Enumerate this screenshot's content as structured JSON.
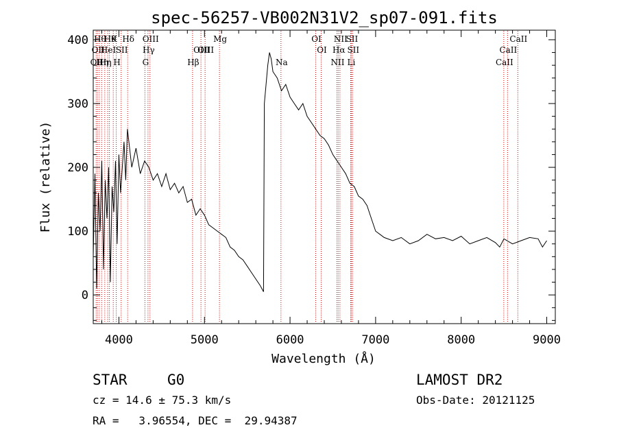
{
  "chart_data": {
    "type": "line",
    "title": "spec-56257-VB002N31V2_sp07-091.fits",
    "xlabel": "Wavelength (Å)",
    "ylabel": "Flux (relative)",
    "xlim": [
      3700,
      9100
    ],
    "ylim": [
      -45,
      415
    ],
    "x_ticks": [
      4000,
      5000,
      6000,
      7000,
      8000,
      9000
    ],
    "y_ticks": [
      0,
      100,
      200,
      300,
      400
    ],
    "line_color": "#000000",
    "marker_color": "#cc0000",
    "grid": false,
    "series": [
      {
        "x": [
          3700,
          3720,
          3740,
          3760,
          3780,
          3800,
          3820,
          3840,
          3860,
          3880,
          3900,
          3920,
          3940,
          3960,
          3980,
          4000,
          4020,
          4040,
          4060,
          4080,
          4100,
          4150,
          4200,
          4250,
          4300,
          4350,
          4400,
          4450,
          4500,
          4550,
          4600,
          4650,
          4700,
          4750,
          4800,
          4850,
          4900,
          4950,
          5000,
          5050,
          5100,
          5150,
          5200,
          5250,
          5300,
          5350,
          5400,
          5450,
          5500,
          5550,
          5600,
          5650,
          5690,
          5700,
          5720,
          5740,
          5760,
          5780,
          5800,
          5850,
          5900,
          5950,
          6000,
          6050,
          6100,
          6150,
          6200,
          6250,
          6300,
          6350,
          6400,
          6450,
          6500,
          6550,
          6600,
          6650,
          6700,
          6750,
          6800,
          6850,
          6900,
          6950,
          7000,
          7050,
          7100,
          7200,
          7300,
          7400,
          7500,
          7600,
          7700,
          7800,
          7900,
          8000,
          8100,
          8200,
          8300,
          8400,
          8450,
          8500,
          8600,
          8700,
          8800,
          8900,
          8950,
          9000
        ],
        "y": [
          60,
          190,
          10,
          160,
          100,
          210,
          40,
          180,
          120,
          200,
          20,
          170,
          130,
          210,
          80,
          220,
          160,
          200,
          240,
          180,
          260,
          200,
          230,
          190,
          210,
          200,
          180,
          190,
          170,
          190,
          165,
          175,
          160,
          170,
          145,
          150,
          125,
          135,
          125,
          110,
          105,
          100,
          95,
          90,
          75,
          70,
          60,
          55,
          45,
          35,
          25,
          15,
          5,
          300,
          330,
          360,
          380,
          370,
          350,
          340,
          320,
          330,
          310,
          300,
          290,
          300,
          280,
          270,
          260,
          250,
          245,
          235,
          220,
          210,
          200,
          190,
          175,
          170,
          155,
          150,
          140,
          120,
          100,
          95,
          90,
          85,
          90,
          80,
          85,
          95,
          88,
          90,
          85,
          92,
          80,
          85,
          90,
          82,
          75,
          88,
          80,
          85,
          90,
          88,
          75,
          85
        ]
      }
    ],
    "line_markers": [
      {
        "x": 3734,
        "label": "OII",
        "row": 3
      },
      {
        "x": 3750,
        "label": "OII",
        "row": 2
      },
      {
        "x": 3771,
        "label": "Hθ",
        "row": 1
      },
      {
        "x": 3798,
        "label": "Hη",
        "row": 3
      },
      {
        "x": 3835,
        "label": "Hη",
        "row": 3
      },
      {
        "x": 3869,
        "label": "HeI",
        "row": 2
      },
      {
        "x": 3889,
        "label": "Hθ",
        "row": 1
      },
      {
        "x": 3934,
        "label": "K",
        "row": 1
      },
      {
        "x": 3969,
        "label": "H",
        "row": 3
      },
      {
        "x": 4026,
        "label": "SII",
        "row": 2
      },
      {
        "x": 4102,
        "label": "Hδ",
        "row": 1
      },
      {
        "x": 4304,
        "label": "G",
        "row": 3
      },
      {
        "x": 4340,
        "label": "Hγ",
        "row": 2
      },
      {
        "x": 4363,
        "label": "OIII",
        "row": 1
      },
      {
        "x": 4861,
        "label": "Hβ",
        "row": 3
      },
      {
        "x": 4959,
        "label": "OIII",
        "row": 2
      },
      {
        "x": 5007,
        "label": "OIII",
        "row": 2
      },
      {
        "x": 5175,
        "label": "Mg",
        "row": 1
      },
      {
        "x": 5894,
        "label": "Na",
        "row": 3
      },
      {
        "x": 6300,
        "label": "OI",
        "row": 1
      },
      {
        "x": 6364,
        "label": "OI",
        "row": 2
      },
      {
        "x": 6548,
        "label": "NII",
        "row": 3
      },
      {
        "x": 6563,
        "label": "Hα",
        "row": 2
      },
      {
        "x": 6583,
        "label": "NII",
        "row": 1
      },
      {
        "x": 6708,
        "label": "Li",
        "row": 3
      },
      {
        "x": 6716,
        "label": "SII",
        "row": 1
      },
      {
        "x": 6731,
        "label": "SII",
        "row": 2
      },
      {
        "x": 8498,
        "label": "CaII",
        "row": 3
      },
      {
        "x": 8542,
        "label": "CaII",
        "row": 2
      },
      {
        "x": 8662,
        "label": "CaII",
        "row": 1
      }
    ]
  },
  "info": {
    "class": "STAR",
    "subclass": "G0",
    "survey": "LAMOST DR2",
    "redshift": "cz = 14.6 ± 75.3 km/s",
    "obsdate": "Obs-Date: 20121125",
    "coords": "RA =   3.96554, DEC =  29.94387"
  }
}
